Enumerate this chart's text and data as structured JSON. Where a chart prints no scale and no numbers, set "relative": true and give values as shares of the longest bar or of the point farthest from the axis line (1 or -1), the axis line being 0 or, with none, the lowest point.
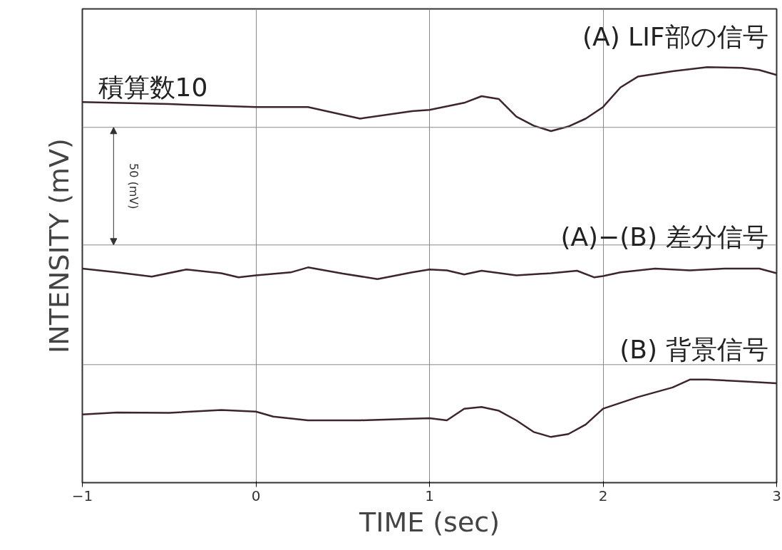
{
  "chart_data": {
    "type": "line",
    "relative": true,
    "xlabel": "TIME (sec)",
    "ylabel": "INTENSITY (mV)",
    "xlim": [
      -1,
      3
    ],
    "xticks": [
      -1,
      0,
      1,
      2,
      3
    ],
    "grid": "x",
    "marker": "none",
    "line_style": "solid",
    "ref_lines": [
      {
        "axis": "y",
        "value": 0.855,
        "color": "#8a8a8a"
      },
      {
        "axis": "y",
        "value": 0.572,
        "color": "#8a8a8a"
      },
      {
        "axis": "y",
        "value": 0.284,
        "color": "#8a8a8a"
      }
    ],
    "annotations": [
      "積算数10",
      "50 (mV)"
    ],
    "series": [
      {
        "name": "(A) LIF部の信号",
        "color": "#3d2530",
        "x": [
          -1,
          -0.5,
          0,
          0.3,
          0.6,
          0.9,
          1.0,
          1.2,
          1.3,
          1.4,
          1.5,
          1.6,
          1.7,
          1.8,
          1.9,
          2.0,
          2.1,
          2.2,
          2.4,
          2.6,
          2.8,
          2.9,
          3.0
        ],
        "values": [
          0.916,
          0.911,
          0.904,
          0.904,
          0.876,
          0.894,
          0.897,
          0.914,
          0.93,
          0.923,
          0.881,
          0.859,
          0.846,
          0.857,
          0.876,
          0.904,
          0.951,
          0.977,
          0.99,
          1.0,
          0.998,
          0.993,
          0.981
        ]
      },
      {
        "name": "(A)−(B) 差分信号",
        "color": "#3d2530",
        "x": [
          -1,
          -0.8,
          -0.6,
          -0.4,
          -0.2,
          -0.1,
          0,
          0.2,
          0.3,
          0.5,
          0.7,
          0.9,
          1.0,
          1.1,
          1.2,
          1.3,
          1.5,
          1.7,
          1.85,
          1.95,
          2.0,
          2.1,
          2.3,
          2.5,
          2.7,
          2.9,
          3.0
        ],
        "values": [
          0.515,
          0.506,
          0.496,
          0.513,
          0.504,
          0.494,
          0.499,
          0.506,
          0.518,
          0.503,
          0.49,
          0.506,
          0.513,
          0.511,
          0.501,
          0.51,
          0.499,
          0.504,
          0.51,
          0.494,
          0.497,
          0.506,
          0.515,
          0.511,
          0.515,
          0.515,
          0.504
        ]
      },
      {
        "name": "(B) 背景信号",
        "color": "#3d2530",
        "x": [
          -1,
          -0.8,
          -0.5,
          -0.2,
          0,
          0.1,
          0.3,
          0.6,
          0.9,
          1.0,
          1.1,
          1.2,
          1.3,
          1.4,
          1.5,
          1.6,
          1.7,
          1.8,
          1.9,
          2.0,
          2.2,
          2.4,
          2.5,
          2.6,
          2.8,
          3.0
        ],
        "values": [
          0.164,
          0.169,
          0.168,
          0.175,
          0.171,
          0.159,
          0.15,
          0.15,
          0.154,
          0.155,
          0.15,
          0.178,
          0.182,
          0.173,
          0.15,
          0.122,
          0.11,
          0.117,
          0.14,
          0.178,
          0.206,
          0.229,
          0.248,
          0.248,
          0.244,
          0.239
        ]
      }
    ]
  }
}
